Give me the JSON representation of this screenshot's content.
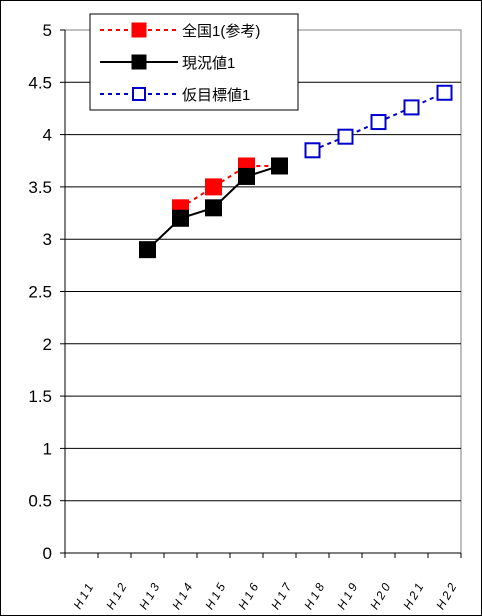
{
  "chart_data": {
    "type": "line",
    "categories": [
      "H11",
      "H12",
      "H13",
      "H14",
      "H15",
      "H16",
      "H17",
      "H18",
      "H19",
      "H20",
      "H21",
      "H22"
    ],
    "ylim": [
      0,
      5
    ],
    "yticks": [
      "0",
      "0.5",
      "1",
      "1.5",
      "2",
      "2.5",
      "3",
      "3.5",
      "4",
      "4.5",
      "5"
    ],
    "grid": true,
    "legend_position": "top-left",
    "series": [
      {
        "name": "全国1(参考)",
        "color": "#ff0000",
        "line_style": "dotted",
        "marker": "filled-square",
        "values": [
          null,
          null,
          null,
          3.3,
          3.5,
          3.7,
          3.7,
          null,
          null,
          null,
          null,
          null
        ]
      },
      {
        "name": "現況値1",
        "color": "#000000",
        "line_style": "solid",
        "marker": "filled-square",
        "values": [
          null,
          null,
          2.9,
          3.2,
          3.3,
          3.6,
          3.7,
          null,
          null,
          null,
          null,
          null
        ]
      },
      {
        "name": "仮目標値1",
        "color": "#0000cc",
        "line_style": "dotted",
        "marker": "hollow-square",
        "values": [
          null,
          null,
          null,
          null,
          null,
          null,
          null,
          3.85,
          3.98,
          4.12,
          4.26,
          4.4
        ]
      }
    ]
  }
}
